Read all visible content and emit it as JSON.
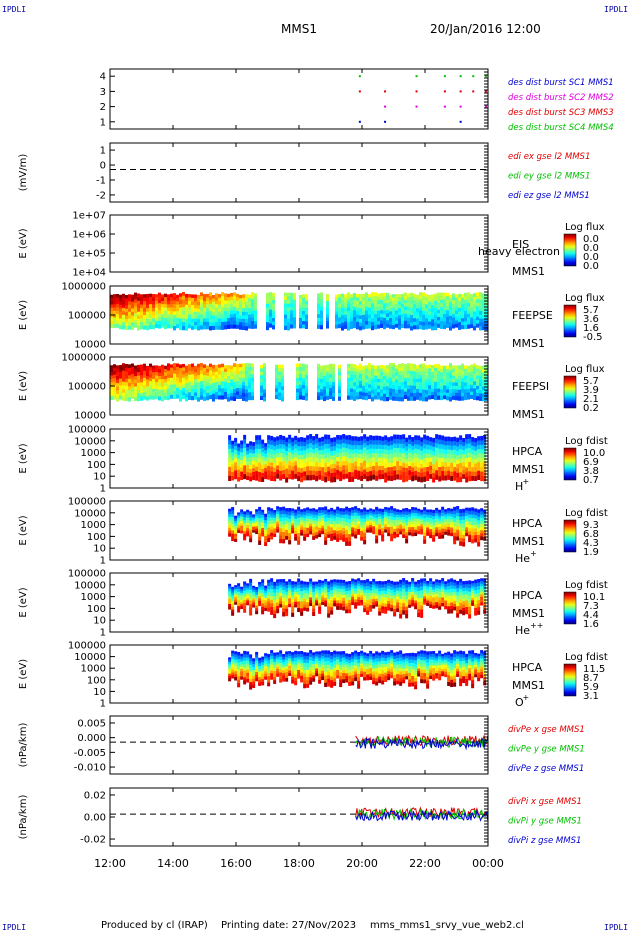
{
  "header": {
    "corner_tl": "IPDLI",
    "corner_tr": "IPDLI",
    "corner_bl": "IPDLI",
    "corner_br": "IPDLI",
    "title": "MMS1",
    "datetime": "20/Jan/2016 12:00"
  },
  "footer": {
    "produced": "Produced by cl (IRAP)",
    "printing": "Printing date: 27/Nov/2023",
    "file": "mms_mms1_srvy_vue_web2.cl"
  },
  "colors": {
    "red": "#e00000",
    "green": "#00c000",
    "blue": "#0000d0",
    "magenta": "#e000e0"
  },
  "chart_data": {
    "type": "multi-panel time series / spectrogram",
    "x_ticks": [
      "12:00",
      "14:00",
      "16:00",
      "18:00",
      "20:00",
      "22:00",
      "00:00"
    ],
    "x_range_hours": [
      12,
      24
    ],
    "panels": [
      {
        "kind": "burst",
        "yticks": [
          "4",
          "3",
          "2",
          "1"
        ],
        "legend": [
          {
            "text": "des dist burst SC1 MMS1",
            "color": "blue"
          },
          {
            "text": "des dist burst SC2 MMS2",
            "color": "magenta"
          },
          {
            "text": "des dist burst SC3 MMS3",
            "color": "red"
          },
          {
            "text": "des dist burst SC4 MMS4",
            "color": "green"
          }
        ],
        "burst_times_hours": [
          19.9,
          20.7,
          21.7,
          22.6,
          23.1,
          23.5,
          23.9
        ]
      },
      {
        "kind": "line",
        "ylabel": "(mV/m)",
        "yticks": [
          "1",
          "0",
          "-1",
          "-2"
        ],
        "legend": [
          {
            "text": "edi ex gse l2 MMS1",
            "color": "red"
          },
          {
            "text": "edi ey gse l2 MMS1",
            "color": "green"
          },
          {
            "text": "edi ez gse l2 MMS1",
            "color": "blue"
          }
        ]
      },
      {
        "kind": "spectrogram",
        "ylabel": "E (eV)",
        "yticks": [
          "1e+07",
          "1e+06",
          "1e+05",
          "1e+04"
        ],
        "side_labels": [
          "EIS",
          "MMS1"
        ],
        "overlay_label": "heavy electron to",
        "colorbar": {
          "title": "Log flux",
          "values": [
            "0.0",
            "0.0",
            "0.0",
            "0.0"
          ]
        },
        "data_start_hour": null
      },
      {
        "kind": "spectrogram",
        "ylabel": "E (eV)",
        "yticks": [
          "1000000",
          "100000",
          "10000"
        ],
        "side_labels": [
          "FEEPSE",
          "MMS1"
        ],
        "colorbar": {
          "title": "Log flux",
          "values": [
            "5.7",
            "3.6",
            "1.6",
            "-0.5"
          ]
        },
        "data_start_hour": 12.0
      },
      {
        "kind": "spectrogram",
        "ylabel": "E (eV)",
        "yticks": [
          "1000000",
          "100000",
          "10000"
        ],
        "side_labels": [
          "FEEPSI",
          "MMS1"
        ],
        "colorbar": {
          "title": "Log flux",
          "values": [
            "5.7",
            "3.9",
            "2.1",
            "0.2"
          ]
        },
        "data_start_hour": 12.0
      },
      {
        "kind": "spectrogram",
        "ylabel": "E (eV)",
        "yticks": [
          "100000",
          "10000",
          "1000",
          "100",
          "10",
          "1"
        ],
        "side_labels": [
          "HPCA",
          "MMS1"
        ],
        "species": "H",
        "species_sup": "+",
        "colorbar": {
          "title": "Log fdist",
          "values": [
            "10.0",
            "6.9",
            "3.8",
            "0.7"
          ]
        },
        "data_start_hour": 15.75
      },
      {
        "kind": "spectrogram",
        "ylabel": "E (eV)",
        "yticks": [
          "100000",
          "10000",
          "1000",
          "100",
          "10",
          "1"
        ],
        "side_labels": [
          "HPCA",
          "MMS1"
        ],
        "species": "He",
        "species_sup": "+",
        "colorbar": {
          "title": "Log fdist",
          "values": [
            "9.3",
            "6.8",
            "4.3",
            "1.9"
          ]
        },
        "data_start_hour": 15.75
      },
      {
        "kind": "spectrogram",
        "ylabel": "E (eV)",
        "yticks": [
          "100000",
          "10000",
          "1000",
          "100",
          "10",
          "1"
        ],
        "side_labels": [
          "HPCA",
          "MMS1"
        ],
        "species": "He",
        "species_sup": "++",
        "colorbar": {
          "title": "Log fdist",
          "values": [
            "10.1",
            "7.3",
            "4.4",
            "1.6"
          ]
        },
        "data_start_hour": 15.75
      },
      {
        "kind": "spectrogram",
        "ylabel": "E (eV)",
        "yticks": [
          "100000",
          "10000",
          "1000",
          "100",
          "10",
          "1"
        ],
        "side_labels": [
          "HPCA",
          "MMS1"
        ],
        "species": "O",
        "species_sup": "+",
        "colorbar": {
          "title": "Log fdist",
          "values": [
            "11.5",
            "8.7",
            "5.9",
            "3.1"
          ]
        },
        "data_start_hour": 15.75
      },
      {
        "kind": "line",
        "ylabel": "(nPa/km)",
        "yticks": [
          "0.005",
          "0.000",
          "-0.005",
          "-0.010"
        ],
        "legend": [
          {
            "text": "divPe x gse MMS1",
            "color": "red"
          },
          {
            "text": "divPe y gse MMS1",
            "color": "green"
          },
          {
            "text": "divPe z gse MMS1",
            "color": "blue"
          }
        ],
        "data_start_hour": 19.8
      },
      {
        "kind": "line",
        "ylabel": "(nPa/km)",
        "yticks": [
          "0.02",
          "0.00",
          "-0.02"
        ],
        "legend": [
          {
            "text": "divPi x gse MMS1",
            "color": "red"
          },
          {
            "text": "divPi y gse MMS1",
            "color": "green"
          },
          {
            "text": "divPi z gse MMS1",
            "color": "blue"
          }
        ],
        "data_start_hour": 19.8
      }
    ]
  }
}
